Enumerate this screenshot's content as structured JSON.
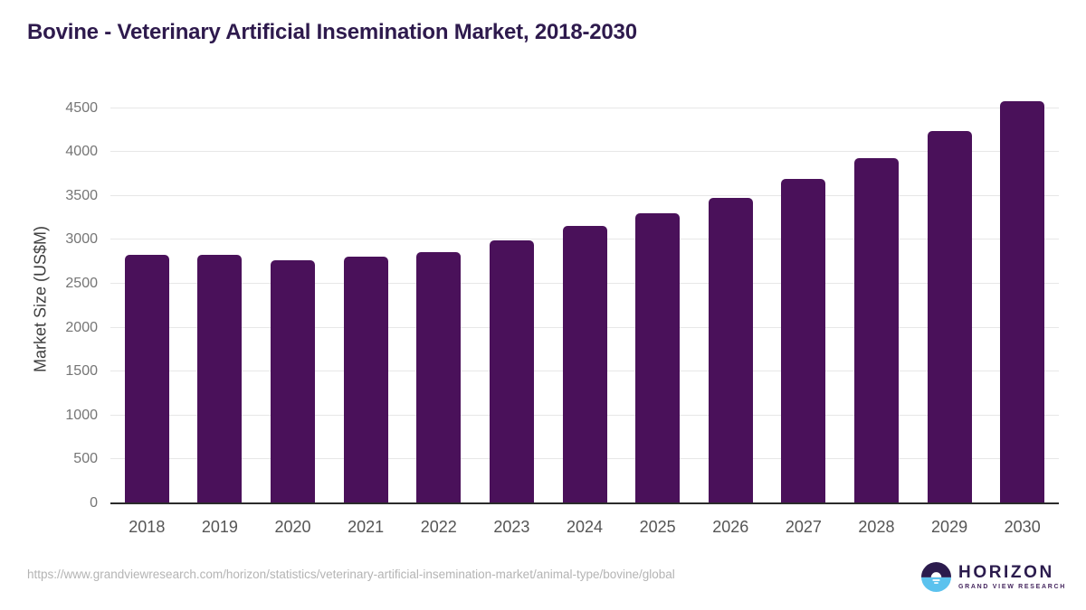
{
  "title": "Bovine - Veterinary Artificial Insemination Market, 2018-2030",
  "source_url": "https://www.grandviewresearch.com/horizon/statistics/veterinary-artificial-insemination-market/animal-type/bovine/global",
  "logo": {
    "name": "HORIZON",
    "subtitle": "GRAND VIEW RESEARCH"
  },
  "colors": {
    "bar": "#4a115a",
    "title_text": "#2e1a4d",
    "grid": "#e7e7e7",
    "axis_line": "#2b2b2b",
    "tick_text": "#757575",
    "x_label_text": "#555555",
    "url_text": "#b4b4b4",
    "logo_purple": "#2b1b4d",
    "logo_blue": "#5bc2ee"
  },
  "chart_data": {
    "type": "bar",
    "title": "Bovine - Veterinary Artificial Insemination Market, 2018-2030",
    "categories": [
      "2018",
      "2019",
      "2020",
      "2021",
      "2022",
      "2023",
      "2024",
      "2025",
      "2026",
      "2027",
      "2028",
      "2029",
      "2030"
    ],
    "values": [
      2830,
      2830,
      2770,
      2810,
      2860,
      2990,
      3155,
      3300,
      3475,
      3690,
      3930,
      4240,
      4580
    ],
    "xlabel": "",
    "ylabel": "Market Size (US$M)",
    "ylim": [
      0,
      4650
    ],
    "yticks": [
      0,
      500,
      1000,
      1500,
      2000,
      2500,
      3000,
      3500,
      4000,
      4500
    ],
    "grid": true,
    "legend": false
  }
}
